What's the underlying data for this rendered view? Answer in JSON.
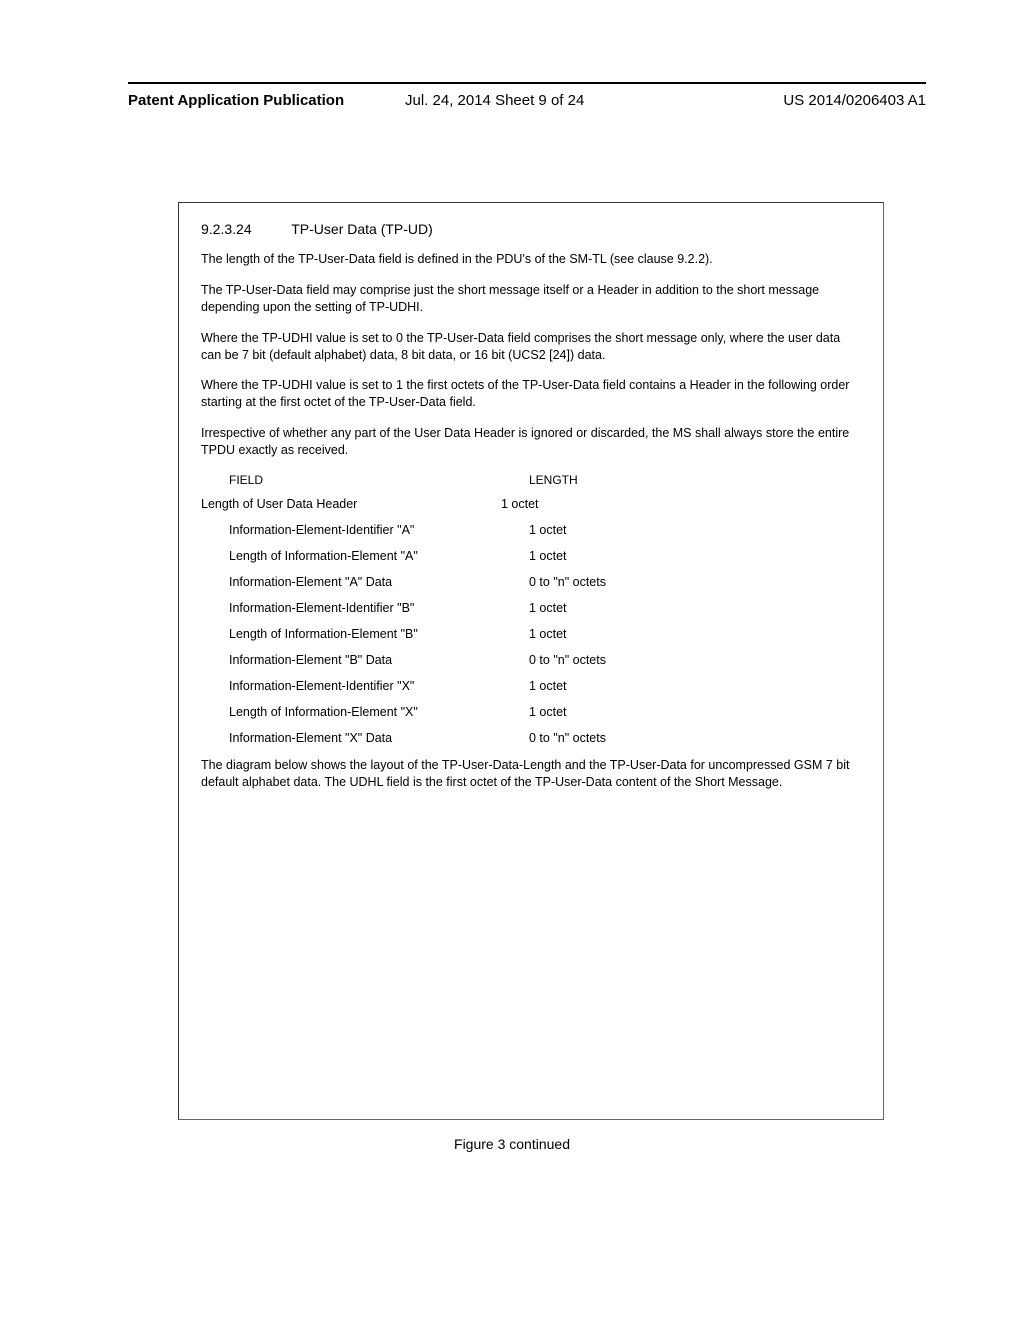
{
  "header": {
    "left": "Patent Application Publication",
    "middle": "Jul. 24, 2014  Sheet 9 of 24",
    "right": "US 2014/0206403 A1"
  },
  "section": {
    "number": "9.2.3.24",
    "title": "TP-User Data (TP-UD)"
  },
  "paragraphs": {
    "p1": "The length of the TP-User-Data field is defined in the PDU's of the SM-TL (see clause 9.2.2).",
    "p2": "The TP-User-Data field may comprise just the short message itself or a Header in addition to the short message depending upon the setting of TP-UDHI.",
    "p3": "Where the TP-UDHI value is set to 0 the TP-User-Data field comprises the short message only, where the user data can be 7 bit (default alphabet) data, 8 bit data, or 16 bit (UCS2 [24]) data.",
    "p4": "Where the TP-UDHI value is set to 1 the first octets of the TP-User-Data field contains a Header in the following order starting at the first octet of the TP-User-Data field.",
    "p5": "Irrespective of whether any part of the User Data Header is ignored or discarded, the MS shall always store the entire TPDU exactly as received.",
    "p6": "The diagram below shows the layout of the TP-User-Data-Length and the TP-User-Data for uncompressed GSM 7 bit default alphabet data. The UDHL field is the first octet of the TP-User-Data content of the Short Message."
  },
  "table": {
    "head_field": "FIELD",
    "head_length": "LENGTH",
    "rows": [
      {
        "field": "Length of User Data Header",
        "length": "1 octet",
        "indent": 1
      },
      {
        "field": "Information-Element-Identifier \"A\"",
        "length": "1 octet",
        "indent": 2
      },
      {
        "field": "Length of Information-Element \"A\"",
        "length": "1 octet",
        "indent": 2
      },
      {
        "field": "Information-Element \"A\" Data",
        "length": "0 to \"n\" octets",
        "indent": 2
      },
      {
        "field": "Information-Element-Identifier \"B\"",
        "length": "1 octet",
        "indent": 2
      },
      {
        "field": "Length of Information-Element \"B\"",
        "length": "1 octet",
        "indent": 2
      },
      {
        "field": "Information-Element \"B\" Data",
        "length": "0 to \"n\" octets",
        "indent": 2
      },
      {
        "field": "Information-Element-Identifier \"X\"",
        "length": "1 octet",
        "indent": 2
      },
      {
        "field": "Length of Information-Element \"X\"",
        "length": "1 octet",
        "indent": 2
      },
      {
        "field": "Information-Element \"X\" Data",
        "length": "0 to \"n\" octets",
        "indent": 2
      }
    ]
  },
  "figure_caption": "Figure 3 continued"
}
